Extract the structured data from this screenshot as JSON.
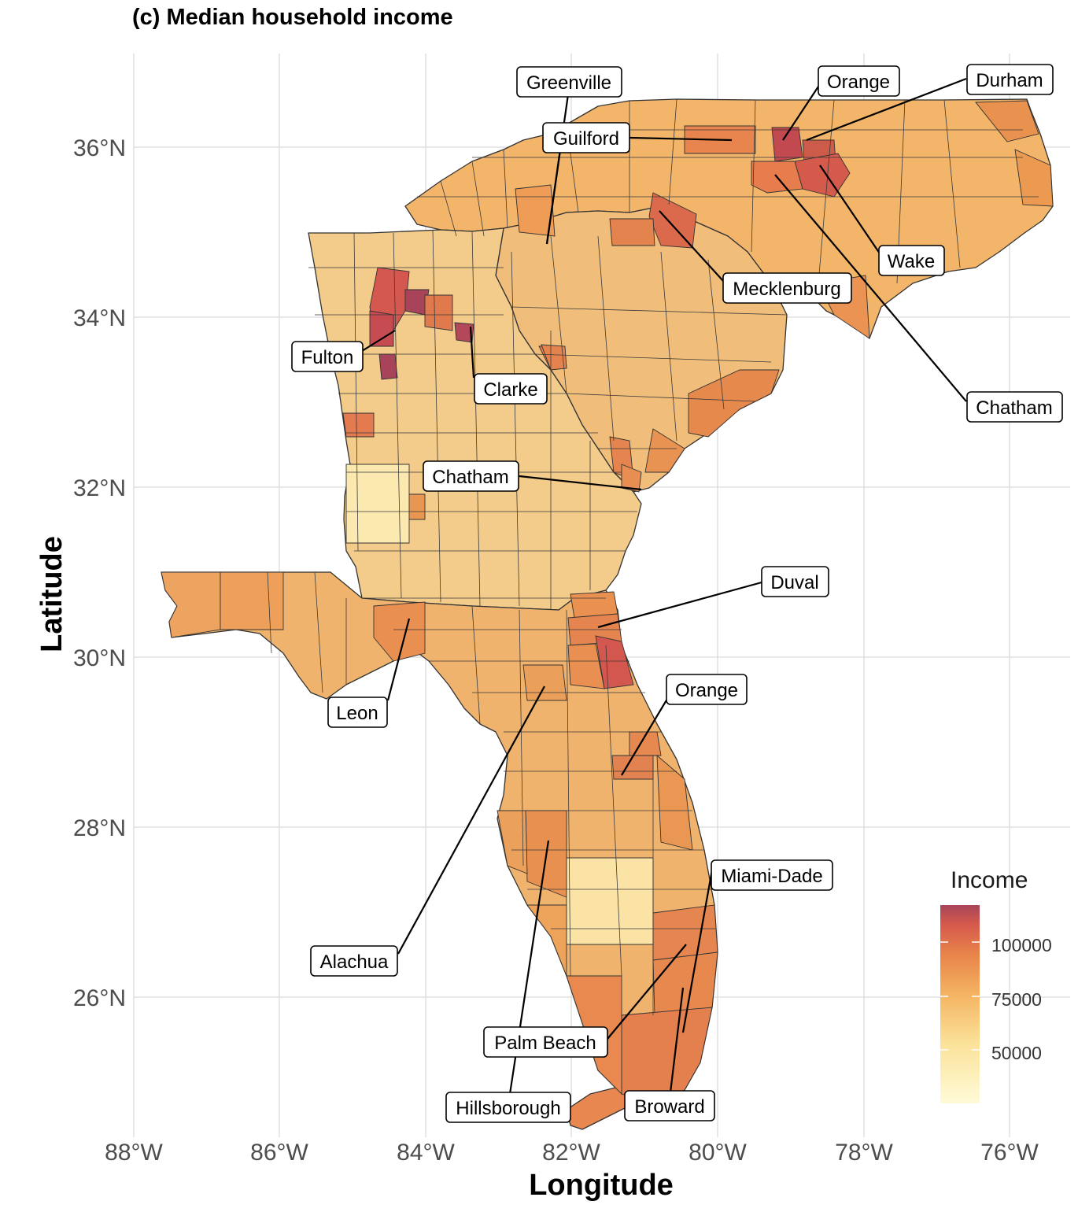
{
  "title": "(c) Median household income",
  "axes": {
    "xlabel": "Longitude",
    "ylabel": "Latitude",
    "x_ticks": [
      "88°W",
      "86°W",
      "84°W",
      "82°W",
      "80°W",
      "78°W",
      "76°W"
    ],
    "y_ticks": [
      "36°N",
      "34°N",
      "32°N",
      "30°N",
      "28°N",
      "26°N"
    ]
  },
  "legend": {
    "title": "Income",
    "labels": [
      "100000",
      "75000",
      "50000"
    ],
    "colors": [
      "#fff8c8",
      "#fbe29a",
      "#f6b865",
      "#ee8b4b",
      "#d9604a",
      "#a8445a"
    ]
  },
  "labels": {
    "greenville": "Greenville",
    "guilford": "Guilford",
    "orange_nc": "Orange",
    "durham": "Durham",
    "wake": "Wake",
    "mecklenburg": "Mecklenburg",
    "chatham_nc": "Chatham",
    "fulton": "Fulton",
    "clarke": "Clarke",
    "chatham_ga": "Chatham",
    "duval": "Duval",
    "leon": "Leon",
    "orange_fl": "Orange",
    "alachua": "Alachua",
    "miami_dade": "Miami-Dade",
    "palm_beach": "Palm Beach",
    "hillsborough": "Hillsborough",
    "broward": "Broward"
  }
}
